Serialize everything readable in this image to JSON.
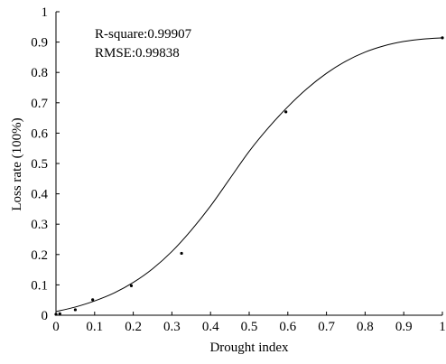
{
  "chart_data": {
    "type": "scatter",
    "xlabel": "Drought index",
    "ylabel": "Loss rate (100%)",
    "xlim": [
      0,
      1
    ],
    "ylim": [
      0,
      1
    ],
    "x_ticks": [
      "0",
      "0.1",
      "0.2",
      "0.3",
      "0.4",
      "0.5",
      "0.6",
      "0.7",
      "0.8",
      "0.9",
      "1"
    ],
    "y_ticks": [
      "0",
      "0.1",
      "0.2",
      "0.3",
      "0.4",
      "0.5",
      "0.6",
      "0.7",
      "0.8",
      "0.9",
      "1"
    ],
    "grid": false,
    "annotations": [
      "R-square:0.99907",
      "RMSE:0.99838"
    ],
    "series": [
      {
        "type": "scatter",
        "x": [
          0.0,
          0.01,
          0.05,
          0.095,
          0.195,
          0.325,
          0.595,
          1.0
        ],
        "y": [
          0.003,
          0.005,
          0.018,
          0.051,
          0.097,
          0.204,
          0.67,
          0.914
        ]
      },
      {
        "type": "line",
        "x": [
          0.0,
          0.05,
          0.1,
          0.15,
          0.2,
          0.25,
          0.3,
          0.35,
          0.4,
          0.45,
          0.5,
          0.55,
          0.6,
          0.65,
          0.7,
          0.75,
          0.8,
          0.85,
          0.9,
          0.95,
          1.0
        ],
        "y": [
          0.012,
          0.027,
          0.047,
          0.073,
          0.108,
          0.153,
          0.21,
          0.28,
          0.36,
          0.45,
          0.54,
          0.618,
          0.687,
          0.747,
          0.797,
          0.837,
          0.867,
          0.888,
          0.902,
          0.91,
          0.914
        ]
      }
    ]
  }
}
